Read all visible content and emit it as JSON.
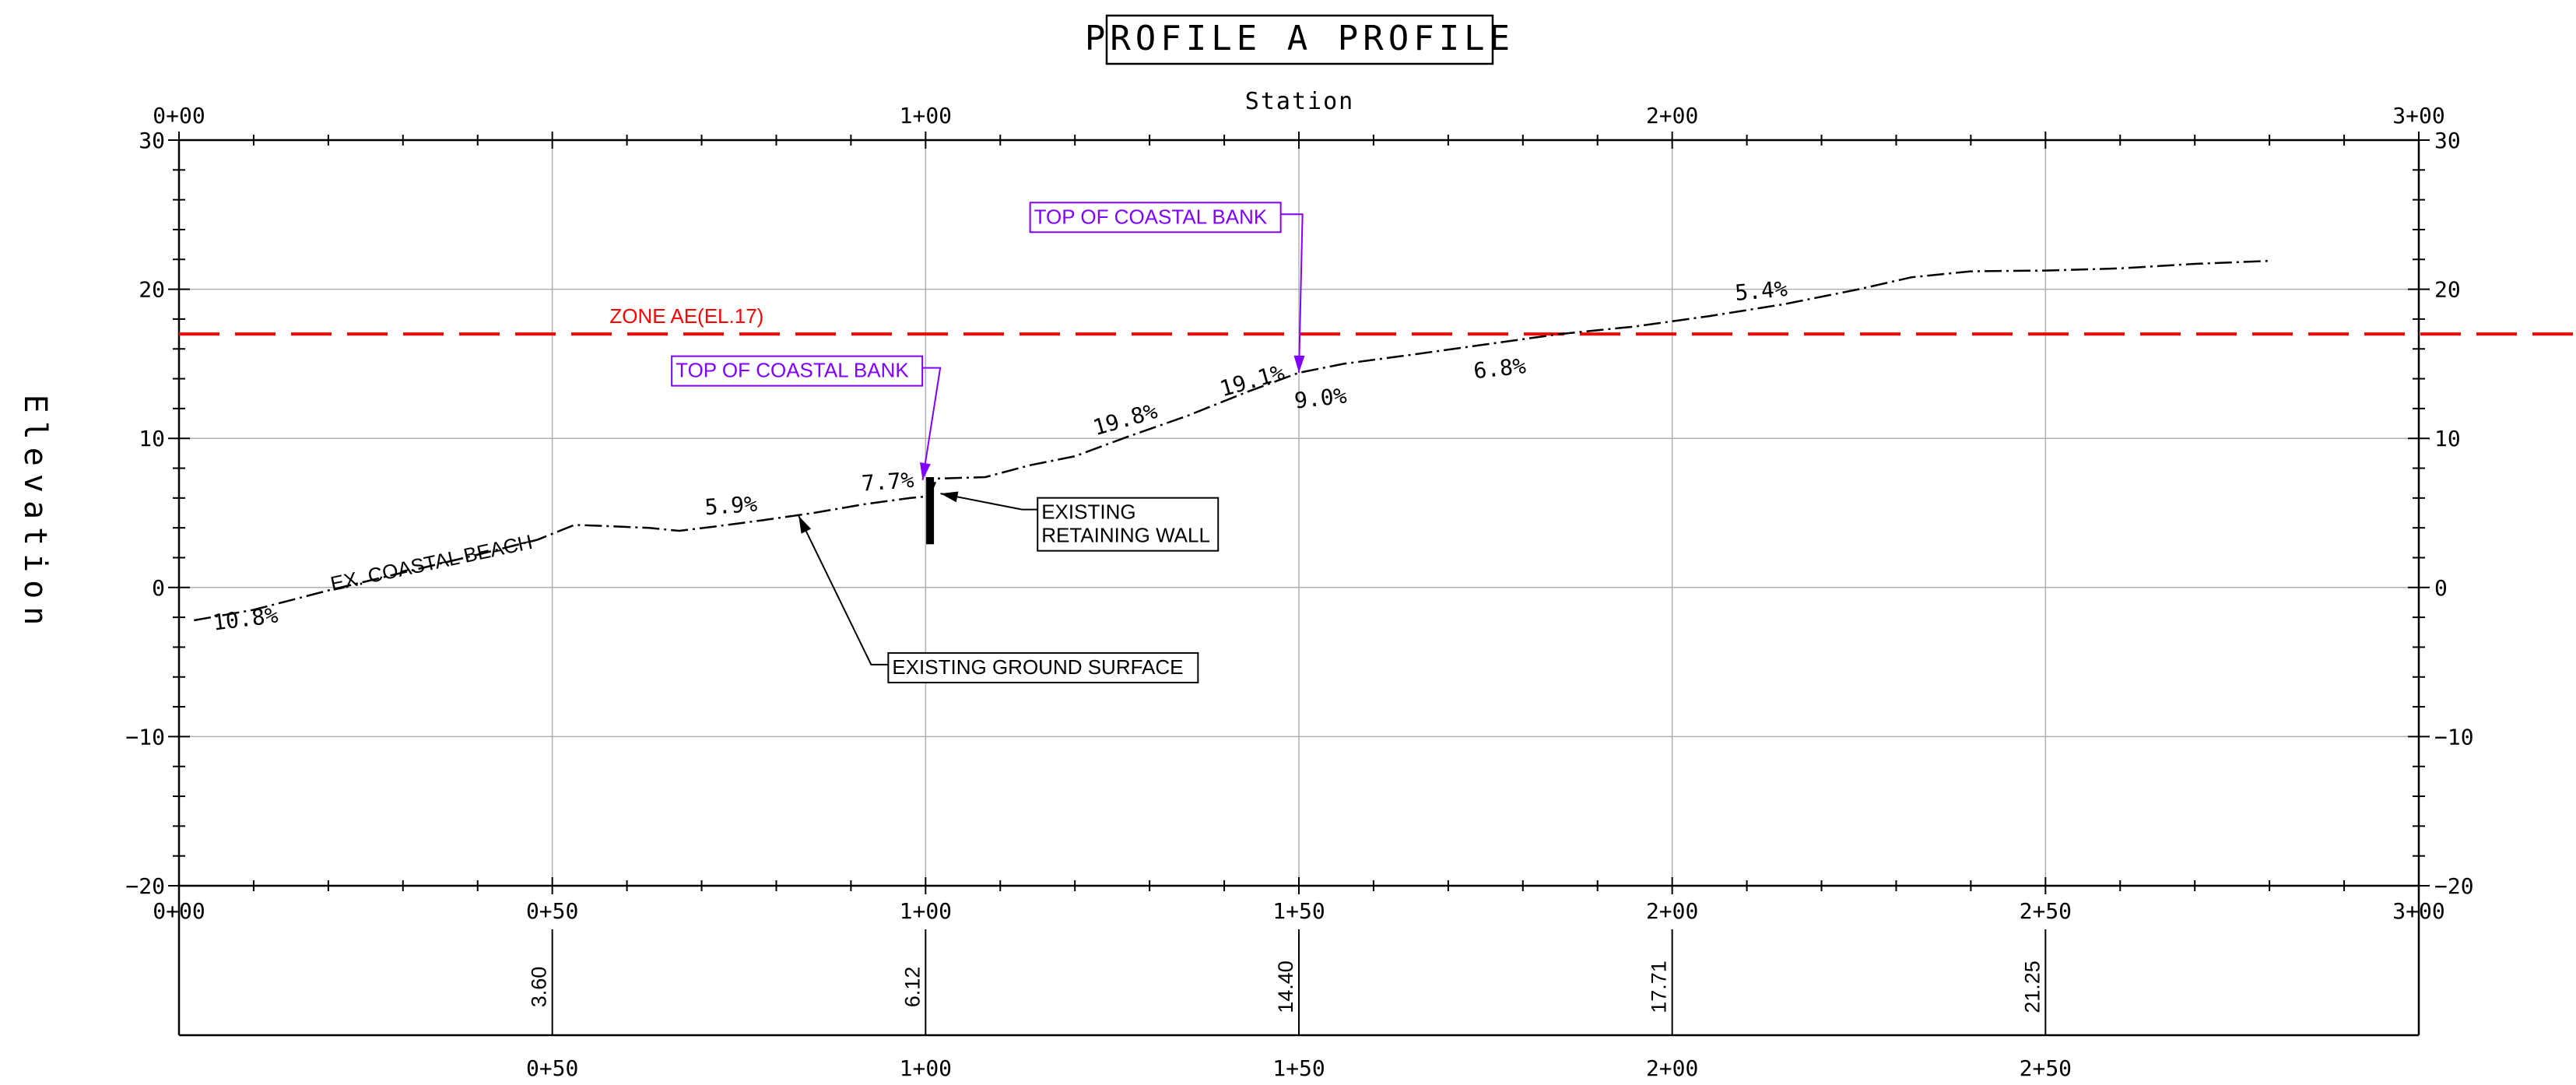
{
  "title": "PROFILE A PROFILE",
  "axes": {
    "x_label": "Station",
    "y_label": "Elevation",
    "x_ticks_top": [
      "0+00",
      "1+00",
      "2+00",
      "3+00"
    ],
    "x_ticks_bottom": [
      "0+00",
      "0+50",
      "1+00",
      "1+50",
      "2+00",
      "2+50",
      "3+00"
    ],
    "x_ticks_band": [
      "0+50",
      "1+00",
      "1+50",
      "2+00",
      "2+50"
    ],
    "y_ticks": [
      "30",
      "20",
      "10",
      "0",
      "−10",
      "−20"
    ]
  },
  "band_elevations": [
    {
      "station": 50,
      "text": "3.60"
    },
    {
      "station": 100,
      "text": "6.12"
    },
    {
      "station": 150,
      "text": "14.40"
    },
    {
      "station": 200,
      "text": "17.71"
    },
    {
      "station": 250,
      "text": "21.25"
    }
  ],
  "flood_zone": {
    "label": "ZONE AE(EL.17)",
    "elevation": 17,
    "color": "#ff0000"
  },
  "ground_profile": [
    [
      2,
      -2.2
    ],
    [
      10,
      -1.5
    ],
    [
      20,
      -0.2
    ],
    [
      30,
      1.0
    ],
    [
      40,
      2.2
    ],
    [
      48,
      3.2
    ],
    [
      53,
      4.2
    ],
    [
      58,
      4.1
    ],
    [
      63,
      4.0
    ],
    [
      67,
      3.8
    ],
    [
      72,
      4.1
    ],
    [
      78,
      4.5
    ],
    [
      85,
      5.0
    ],
    [
      92,
      5.6
    ],
    [
      98,
      6.0
    ],
    [
      100.5,
      6.12
    ],
    [
      101.5,
      7.3
    ],
    [
      108,
      7.4
    ],
    [
      114,
      8.2
    ],
    [
      120,
      8.8
    ],
    [
      127,
      10.1
    ],
    [
      135,
      11.5
    ],
    [
      143,
      13.1
    ],
    [
      150,
      14.4
    ],
    [
      156,
      15.0
    ],
    [
      165,
      15.6
    ],
    [
      175,
      16.3
    ],
    [
      185,
      17.0
    ],
    [
      195,
      17.5
    ],
    [
      205,
      18.2
    ],
    [
      215,
      19.0
    ],
    [
      225,
      20.0
    ],
    [
      232,
      20.8
    ],
    [
      240,
      21.2
    ],
    [
      250,
      21.25
    ],
    [
      260,
      21.4
    ],
    [
      270,
      21.7
    ],
    [
      280,
      21.9
    ]
  ],
  "grades": [
    {
      "text": "10.8%",
      "station": 9,
      "elevation": -2.6,
      "angle": -7
    },
    {
      "text": "5.9%",
      "station": 74,
      "elevation": 5.0,
      "angle": -4
    },
    {
      "text": "7.7%",
      "station": 95,
      "elevation": 6.6,
      "angle": -4
    },
    {
      "text": "19.8%",
      "station": 127,
      "elevation": 10.8,
      "angle": -16
    },
    {
      "text": "19.1%",
      "station": 144,
      "elevation": 13.4,
      "angle": -16
    },
    {
      "text": "9.0%",
      "station": 153,
      "elevation": 12.2,
      "angle": -6
    },
    {
      "text": "6.8%",
      "station": 177,
      "elevation": 14.2,
      "angle": -6
    },
    {
      "text": "5.4%",
      "station": 212,
      "elevation": 19.4,
      "angle": -5
    }
  ],
  "annotations": {
    "beach": {
      "text": "EX. COASTAL BEACH",
      "station": 34,
      "elevation": 1.2,
      "angle": -12
    },
    "top_bank_1": {
      "text": "TOP OF COASTAL BANK",
      "color": "#8000ff",
      "box_station": 66,
      "box_elevation": 14.1,
      "target_station": 99.6,
      "target_elevation": 7.2
    },
    "top_bank_2": {
      "text": "TOP OF COASTAL BANK",
      "color": "#8000ff",
      "box_station": 114,
      "box_elevation": 24.4,
      "target_station": 150,
      "target_elevation": 14.4
    },
    "retaining_wall": {
      "lines": [
        "EXISTING",
        "RETAINING WALL"
      ],
      "box_station": 115,
      "box_elevation": 4.6,
      "target_station": 102,
      "target_elevation": 6.3
    },
    "ground_surface": {
      "text": "EXISTING GROUND SURFACE",
      "box_station": 95,
      "box_elevation": -5.8,
      "target_station": 83,
      "target_elevation": 4.8
    }
  }
}
